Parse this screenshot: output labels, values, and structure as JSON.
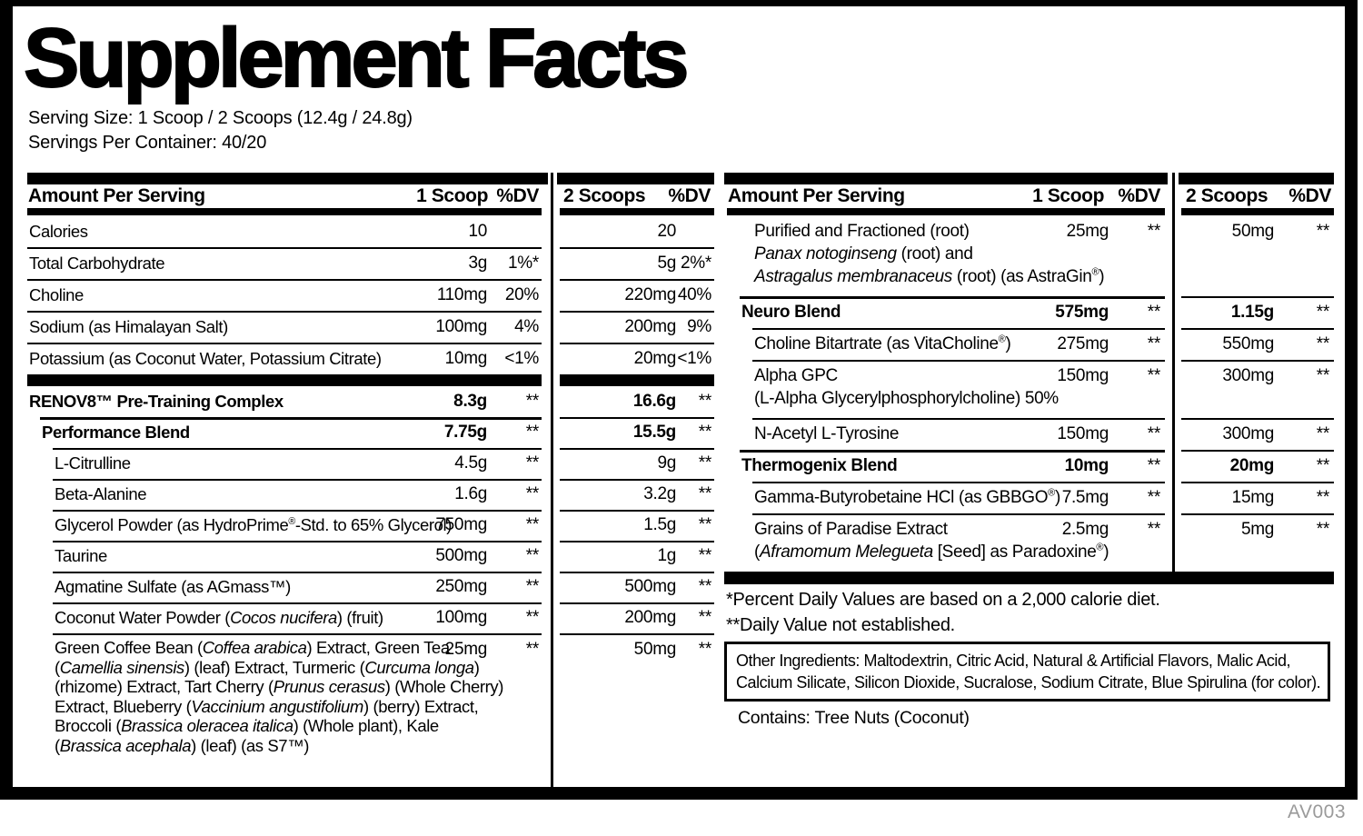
{
  "label": {
    "title": "Supplement Facts",
    "serving_size": "Serving Size: 1 Scoop / 2 Scoops (12.4g / 24.8g)",
    "servings_per_container": "Servings Per Container: 40/20",
    "code": "AV003"
  },
  "left_panel": {
    "header": {
      "amount": "Amount Per Serving",
      "scoop": "1 Scoop",
      "dv": "%DV"
    },
    "scoops2_header": {
      "scoop": "2 Scoops",
      "dv": "%DV"
    },
    "sections": [
      {
        "rows": [
          {
            "name": [
              [
                [
                  "Calories",
                  0
                ]
              ]
            ],
            "level": 0,
            "bold": false,
            "value": "10",
            "dv": "",
            "value2": "20",
            "dv2": ""
          },
          {
            "name": [
              [
                [
                  "Total Carbohydrate",
                  0
                ]
              ]
            ],
            "level": 0,
            "bold": false,
            "value": "3g",
            "dv": "1%*",
            "value2": "5g",
            "dv2": "2%*"
          },
          {
            "name": [
              [
                [
                  "Choline",
                  0
                ]
              ]
            ],
            "level": 0,
            "bold": false,
            "value": "110mg",
            "dv": "20%",
            "value2": "220mg",
            "dv2": "40%"
          },
          {
            "name": [
              [
                [
                  "Sodium (as Himalayan Salt)",
                  0
                ]
              ]
            ],
            "level": 0,
            "bold": false,
            "value": "100mg",
            "dv": "4%",
            "value2": "200mg",
            "dv2": "9%"
          },
          {
            "name": [
              [
                [
                  "Potassium (as Coconut Water, Potassium Citrate)",
                  0
                ]
              ]
            ],
            "level": 0,
            "bold": false,
            "value": "10mg",
            "dv": "<1%",
            "value2": "20mg",
            "dv2": "<1%"
          }
        ]
      },
      {
        "rows": [
          {
            "name": [
              [
                [
                  "RENOV8™ Pre-Training Complex",
                  0
                ]
              ]
            ],
            "level": 0,
            "bold": true,
            "value": "8.3g",
            "dv": "**",
            "value2": "16.6g",
            "dv2": "**"
          },
          {
            "name": [
              [
                [
                  "Performance Blend",
                  0
                ]
              ]
            ],
            "level": 1,
            "bold": true,
            "value": "7.75g",
            "dv": "**",
            "value2": "15.5g",
            "dv2": "**"
          },
          {
            "name": [
              [
                [
                  "L-Citrulline",
                  0
                ]
              ]
            ],
            "level": 2,
            "bold": false,
            "value": "4.5g",
            "dv": "**",
            "value2": "9g",
            "dv2": "**"
          },
          {
            "name": [
              [
                [
                  "Beta-Alanine",
                  0
                ]
              ]
            ],
            "level": 2,
            "bold": false,
            "value": "1.6g",
            "dv": "**",
            "value2": "3.2g",
            "dv2": "**"
          },
          {
            "name": [
              [
                [
                  "Glycerol Powder (as HydroPrime",
                  0
                ],
                [
                  "®",
                  2
                ],
                [
                  "-Std. to 65% Glycerol)",
                  0
                ]
              ]
            ],
            "level": 2,
            "bold": false,
            "value": "750mg",
            "dv": "**",
            "value2": "1.5g",
            "dv2": "**"
          },
          {
            "name": [
              [
                [
                  "Taurine",
                  0
                ]
              ]
            ],
            "level": 2,
            "bold": false,
            "value": "500mg",
            "dv": "**",
            "value2": "1g",
            "dv2": "**"
          },
          {
            "name": [
              [
                [
                  "Agmatine Sulfate (as AGmass™)",
                  0
                ]
              ]
            ],
            "level": 2,
            "bold": false,
            "value": "250mg",
            "dv": "**",
            "value2": "500mg",
            "dv2": "**"
          },
          {
            "name": [
              [
                [
                  "Coconut Water Powder (",
                  0
                ],
                [
                  "Cocos nucifera",
                  1
                ],
                [
                  ") (fruit)",
                  0
                ]
              ]
            ],
            "level": 2,
            "bold": false,
            "value": "100mg",
            "dv": "**",
            "value2": "200mg",
            "dv2": "**"
          },
          {
            "name": [
              [
                [
                  "Green Coffee Bean (",
                  0
                ],
                [
                  "Coffea arabica",
                  1
                ],
                [
                  ") Extract, Green Tea",
                  0
                ]
              ],
              [
                [
                  "(",
                  0
                ],
                [
                  "Camellia sinensis",
                  1
                ],
                [
                  ") (leaf) Extract, Turmeric (",
                  0
                ],
                [
                  "Curcuma longa",
                  1
                ],
                [
                  ")",
                  0
                ]
              ],
              [
                [
                  "(rhizome) Extract, Tart Cherry (",
                  0
                ],
                [
                  "Prunus cerasus",
                  1
                ],
                [
                  ") (Whole Cherry)",
                  0
                ]
              ],
              [
                [
                  "Extract, Blueberry (",
                  0
                ],
                [
                  "Vaccinium angustifolium",
                  1
                ],
                [
                  ") (berry) Extract,",
                  0
                ]
              ],
              [
                [
                  "Broccoli (",
                  0
                ],
                [
                  "Brassica oleracea italica",
                  1
                ],
                [
                  ") (Whole plant), Kale",
                  0
                ]
              ],
              [
                [
                  "(",
                  0
                ],
                [
                  "Brassica acephala",
                  1
                ],
                [
                  ") (leaf) (as S7™)",
                  0
                ]
              ]
            ],
            "level": 2,
            "bold": false,
            "value": "25mg",
            "dv": "**",
            "value2": "50mg",
            "dv2": "**"
          }
        ]
      }
    ]
  },
  "right_panel": {
    "header": {
      "amount": "Amount Per Serving",
      "scoop": "1 Scoop",
      "dv": "%DV"
    },
    "scoops2_header": {
      "scoop": "2 Scoops",
      "dv": "%DV"
    },
    "sections": [
      {
        "rows": [
          {
            "name": [
              [
                [
                  "Purified and Fractioned (root)",
                  0
                ]
              ],
              [
                [
                  "Panax notoginseng",
                  1
                ],
                [
                  " (root) and",
                  0
                ]
              ],
              [
                [
                  "Astragalus membranaceus",
                  1
                ],
                [
                  " (root) (as AstraGin",
                  0
                ],
                [
                  "®",
                  2
                ],
                [
                  ")",
                  0
                ]
              ]
            ],
            "level": 2,
            "bold": false,
            "value": "25mg",
            "dv": "**",
            "value2": "50mg",
            "dv2": "**"
          },
          {
            "name": [
              [
                [
                  "Neuro Blend",
                  0
                ]
              ]
            ],
            "level": 1,
            "bold": true,
            "value": "575mg",
            "dv": "**",
            "value2": "1.15g",
            "dv2": "**"
          },
          {
            "name": [
              [
                [
                  "Choline Bitartrate (as VitaCholine",
                  0
                ],
                [
                  "®",
                  2
                ],
                [
                  ")",
                  0
                ]
              ]
            ],
            "level": 2,
            "bold": false,
            "value": "275mg",
            "dv": "**",
            "value2": "550mg",
            "dv2": "**"
          },
          {
            "name": [
              [
                [
                  "Alpha GPC",
                  0
                ]
              ],
              [
                [
                  "(L-Alpha Glycerylphosphorylcholine) 50%",
                  0
                ]
              ]
            ],
            "level": 2,
            "bold": false,
            "value": "150mg",
            "dv": "**",
            "value2": "300mg",
            "dv2": "**"
          },
          {
            "name": [
              [
                [
                  "N-Acetyl L-Tyrosine",
                  0
                ]
              ]
            ],
            "level": 2,
            "bold": false,
            "value": "150mg",
            "dv": "**",
            "value2": "300mg",
            "dv2": "**"
          },
          {
            "name": [
              [
                [
                  "Thermogenix Blend",
                  0
                ]
              ]
            ],
            "level": 1,
            "bold": true,
            "value": "10mg",
            "dv": "**",
            "value2": "20mg",
            "dv2": "**"
          },
          {
            "name": [
              [
                [
                  "Gamma-Butyrobetaine HCl (as GBBGO",
                  0
                ],
                [
                  "®",
                  2
                ],
                [
                  ")",
                  0
                ]
              ]
            ],
            "level": 2,
            "bold": false,
            "value": "7.5mg",
            "dv": "**",
            "value2": "15mg",
            "dv2": "**"
          },
          {
            "name": [
              [
                [
                  "Grains of Paradise Extract",
                  0
                ]
              ],
              [
                [
                  "(",
                  0
                ],
                [
                  "Aframomum Melegueta",
                  1
                ],
                [
                  " [Seed] as Paradoxine",
                  0
                ],
                [
                  "®",
                  2
                ],
                [
                  ")",
                  0
                ]
              ]
            ],
            "level": 2,
            "bold": false,
            "value": "2.5mg",
            "dv": "**",
            "value2": "5mg",
            "dv2": "**"
          }
        ]
      }
    ]
  },
  "footnotes": {
    "percent_dv": "*Percent Daily Values are based on a 2,000 calorie diet.",
    "dv_not_established": "**Daily Value not established."
  },
  "other_ingredients": {
    "line1": "Other Ingredients: Maltodextrin, Citric Acid, Natural & Artificial Flavors, Malic Acid,",
    "line2": "Calcium Silicate, Silicon Dioxide, Sucralose, Sodium Citrate, Blue Spirulina (for color)."
  },
  "contains": "Contains: Tree Nuts (Coconut)"
}
